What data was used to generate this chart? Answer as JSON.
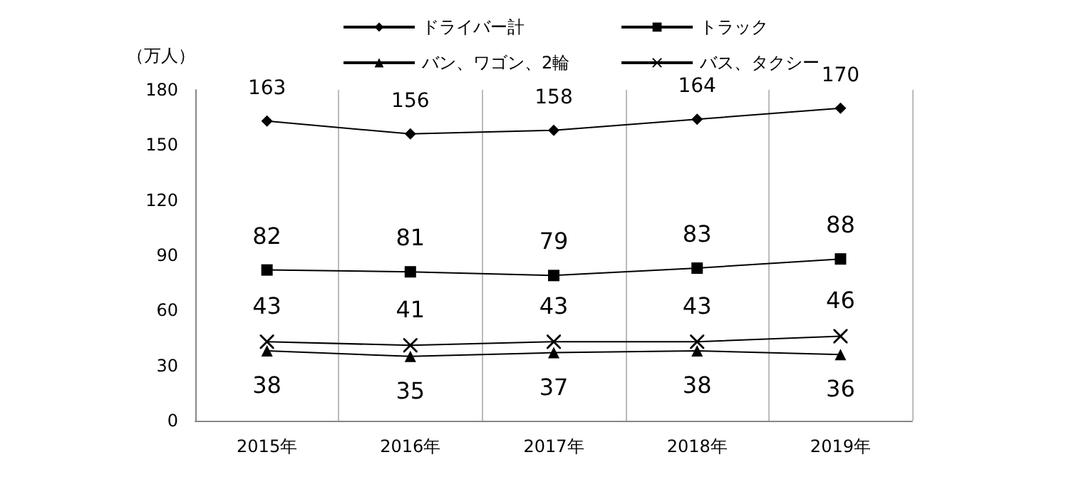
{
  "chart_data": {
    "type": "line",
    "ylabel": "（万人）",
    "categories": [
      "2015年",
      "2016年",
      "2017年",
      "2018年",
      "2019年"
    ],
    "series": [
      {
        "name": "ドライバー計",
        "color": "#000000",
        "marker": "diamond",
        "values": [
          163,
          156,
          158,
          164,
          170
        ]
      },
      {
        "name": "トラック",
        "color": "#000000",
        "marker": "square",
        "values": [
          82,
          81,
          79,
          83,
          88
        ]
      },
      {
        "name": "バン、ワゴン、2輪",
        "color": "#000000",
        "marker": "triangle",
        "values": [
          38,
          35,
          37,
          38,
          36
        ]
      },
      {
        "name": "バス、タクシー",
        "color": "#000000",
        "marker": "cross",
        "values": [
          43,
          41,
          43,
          43,
          46
        ]
      }
    ],
    "ylim": [
      0,
      180
    ],
    "yticks": [
      0,
      30,
      60,
      90,
      120,
      150,
      180
    ],
    "grid": "x",
    "legend": "top",
    "data_labels": true,
    "line_style": "solid"
  }
}
